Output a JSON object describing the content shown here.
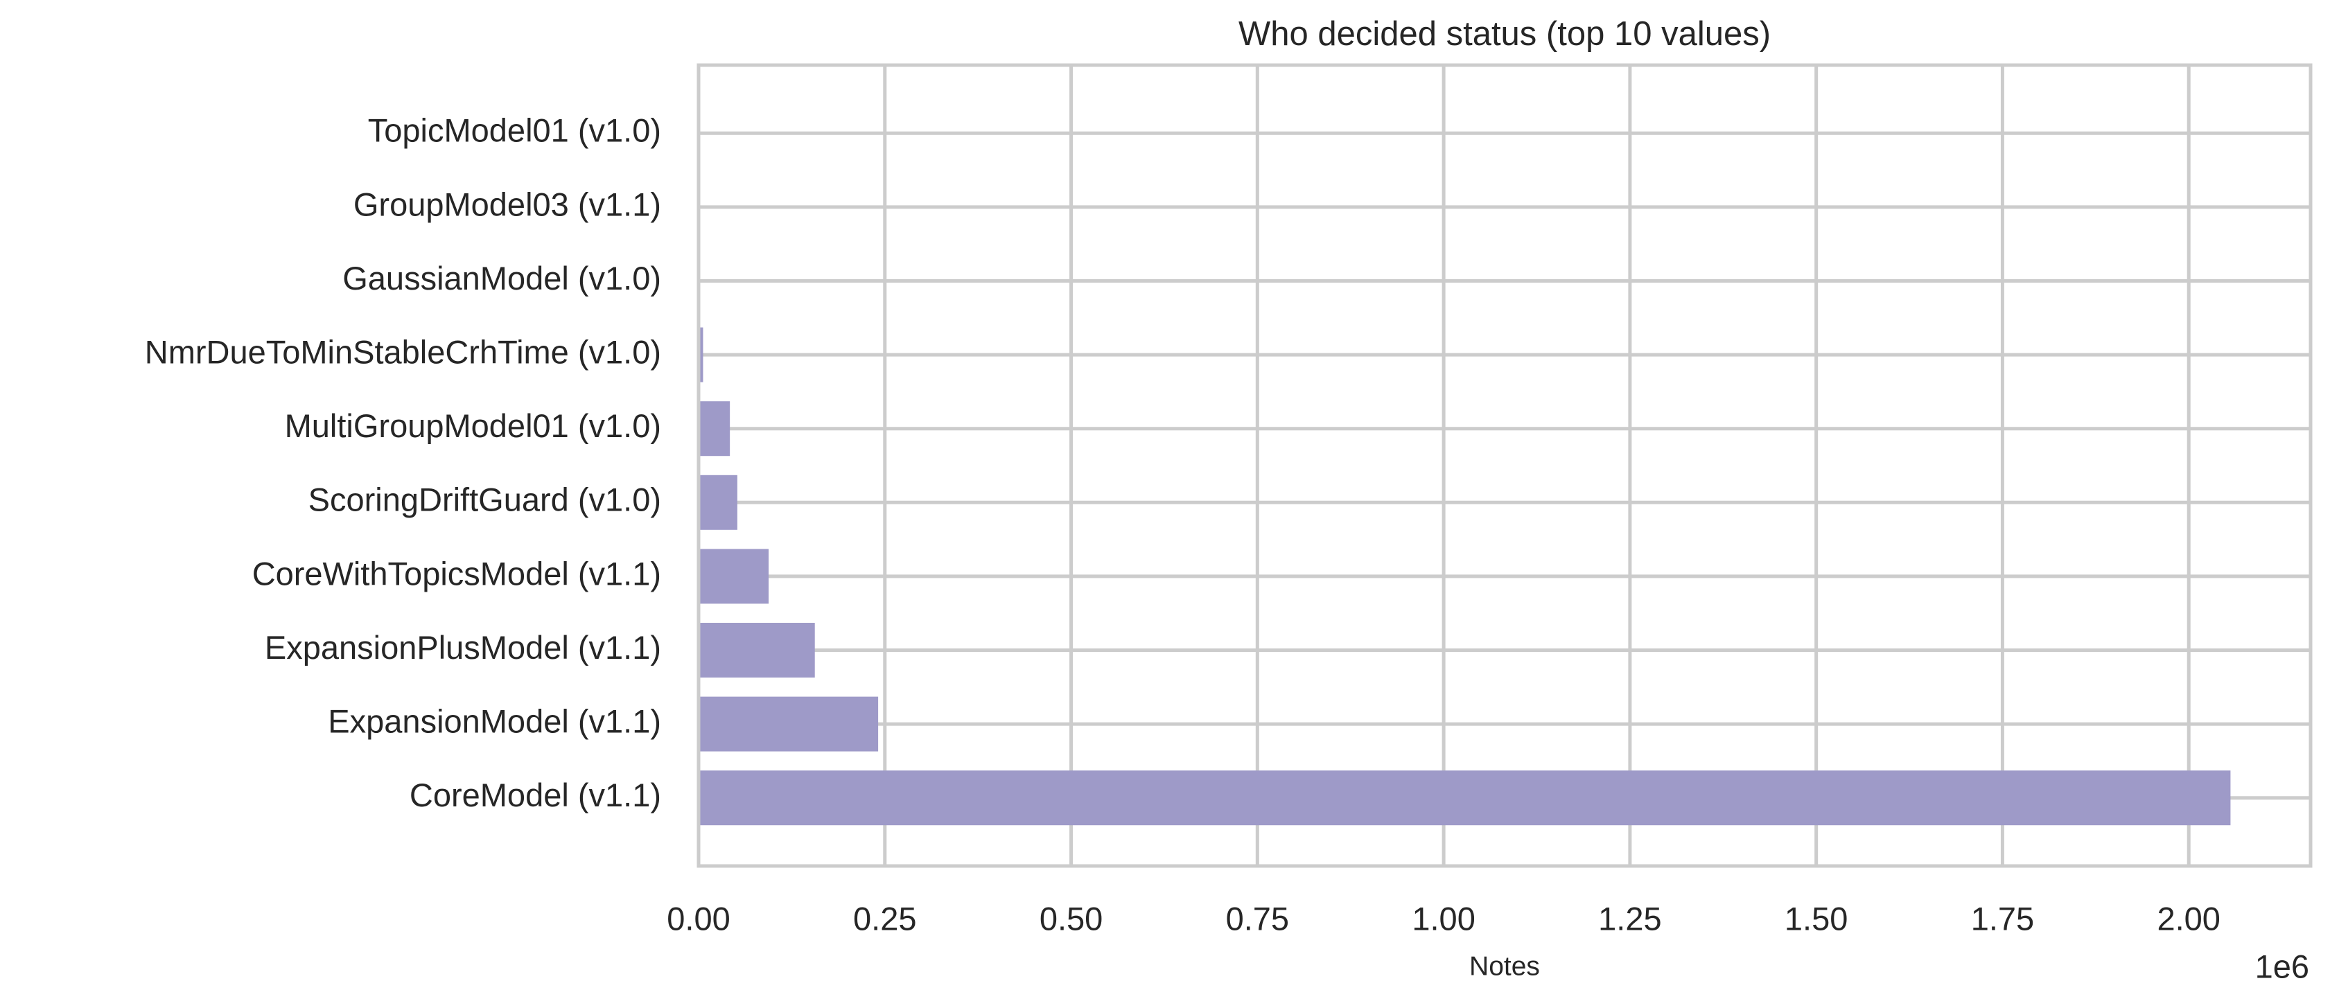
{
  "chart_data": {
    "type": "barh",
    "title": "Who decided status (top 10 values)",
    "x_label": "Notes",
    "x_offset_label": "1e6",
    "categories": [
      "TopicModel01 (v1.0)",
      "GroupModel03 (v1.1)",
      "GaussianModel (v1.0)",
      "NmrDueToMinStableCrhTime (v1.0)",
      "MultiGroupModel01 (v1.0)",
      "ScoringDriftGuard (v1.0)",
      "CoreWithTopicsModel (v1.1)",
      "ExpansionPlusModel (v1.1)",
      "ExpansionModel (v1.1)",
      "CoreModel (v1.1)"
    ],
    "values": [
      100,
      300,
      500,
      6000,
      42000,
      52000,
      94000,
      156000,
      241000,
      2056000
    ],
    "color": "#9e9ac8",
    "xlim": [
      0,
      2163500
    ],
    "xticks": [
      {
        "value": 0,
        "label": "0.00"
      },
      {
        "value": 250000,
        "label": "0.25"
      },
      {
        "value": 500000,
        "label": "0.50"
      },
      {
        "value": 750000,
        "label": "0.75"
      },
      {
        "value": 1000000,
        "label": "1.00"
      },
      {
        "value": 1250000,
        "label": "1.25"
      },
      {
        "value": 1500000,
        "label": "1.50"
      },
      {
        "value": 1750000,
        "label": "1.75"
      },
      {
        "value": 2000000,
        "label": "2.00"
      }
    ],
    "grid": true
  }
}
